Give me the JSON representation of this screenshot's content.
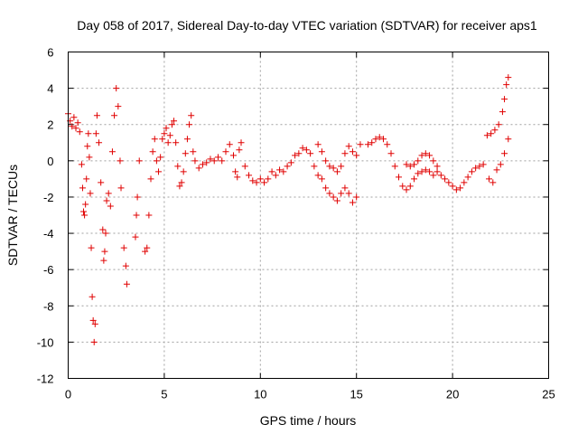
{
  "chart_data": {
    "type": "scatter",
    "title": "Day 058 of 2017, Sidereal Day-to-day VTEC variation (SDTVAR) for receiver aps1",
    "xlabel": "GPS time / hours",
    "ylabel": "SDTVAR / TECUs",
    "xlim": [
      0,
      25
    ],
    "ylim": [
      -12,
      6
    ],
    "xticks": [
      0,
      5,
      10,
      15,
      20,
      25
    ],
    "yticks": [
      -12,
      -10,
      -8,
      -6,
      -4,
      -2,
      0,
      2,
      4,
      6
    ],
    "grid": true,
    "marker": "plus",
    "marker_color": "#e00000",
    "series": [
      {
        "name": "aps1",
        "points": [
          [
            0.0,
            2.6
          ],
          [
            0.1,
            2.2
          ],
          [
            0.2,
            1.9
          ],
          [
            0.3,
            2.4
          ],
          [
            0.4,
            1.8
          ],
          [
            0.5,
            2.1
          ],
          [
            0.6,
            1.6
          ],
          [
            0.7,
            -0.2
          ],
          [
            0.75,
            -1.5
          ],
          [
            0.8,
            -2.8
          ],
          [
            0.85,
            -3.0
          ],
          [
            0.9,
            -2.4
          ],
          [
            0.95,
            -1.0
          ],
          [
            1.0,
            0.8
          ],
          [
            1.05,
            1.5
          ],
          [
            1.1,
            0.2
          ],
          [
            1.15,
            -1.8
          ],
          [
            1.2,
            -4.8
          ],
          [
            1.25,
            -7.5
          ],
          [
            1.3,
            -8.8
          ],
          [
            1.35,
            -10.0
          ],
          [
            1.4,
            -9.0
          ],
          [
            1.45,
            1.5
          ],
          [
            1.5,
            2.5
          ],
          [
            1.6,
            1.0
          ],
          [
            1.7,
            -1.2
          ],
          [
            1.8,
            -3.8
          ],
          [
            1.85,
            -5.5
          ],
          [
            1.9,
            -5.0
          ],
          [
            1.95,
            -4.0
          ],
          [
            2.0,
            -2.2
          ],
          [
            2.1,
            -1.8
          ],
          [
            2.2,
            -2.5
          ],
          [
            2.3,
            0.5
          ],
          [
            2.4,
            2.5
          ],
          [
            2.5,
            4.0
          ],
          [
            2.6,
            3.0
          ],
          [
            2.7,
            0.0
          ],
          [
            2.75,
            -1.5
          ],
          [
            2.9,
            -4.8
          ],
          [
            3.0,
            -5.8
          ],
          [
            3.05,
            -6.8
          ],
          [
            3.5,
            -4.2
          ],
          [
            3.55,
            -3.0
          ],
          [
            3.6,
            -2.0
          ],
          [
            3.7,
            0.0
          ],
          [
            4.0,
            -5.0
          ],
          [
            4.1,
            -4.8
          ],
          [
            4.2,
            -3.0
          ],
          [
            4.3,
            -1.0
          ],
          [
            4.4,
            0.5
          ],
          [
            4.5,
            1.2
          ],
          [
            4.6,
            0.0
          ],
          [
            4.7,
            -0.6
          ],
          [
            4.8,
            0.2
          ],
          [
            4.9,
            1.2
          ],
          [
            5.0,
            1.5
          ],
          [
            5.1,
            1.8
          ],
          [
            5.2,
            1.0
          ],
          [
            5.3,
            1.4
          ],
          [
            5.4,
            2.0
          ],
          [
            5.5,
            2.2
          ],
          [
            5.6,
            1.0
          ],
          [
            5.7,
            -0.3
          ],
          [
            5.8,
            -1.4
          ],
          [
            5.9,
            -1.2
          ],
          [
            6.0,
            -0.6
          ],
          [
            6.1,
            0.4
          ],
          [
            6.2,
            1.2
          ],
          [
            6.3,
            2.0
          ],
          [
            6.4,
            2.5
          ],
          [
            6.5,
            0.5
          ],
          [
            6.6,
            0.0
          ],
          [
            6.8,
            -0.4
          ],
          [
            7.0,
            -0.2
          ],
          [
            7.2,
            -0.1
          ],
          [
            7.4,
            0.1
          ],
          [
            7.6,
            0.0
          ],
          [
            7.8,
            0.2
          ],
          [
            8.0,
            0.0
          ],
          [
            8.2,
            0.5
          ],
          [
            8.4,
            0.9
          ],
          [
            8.6,
            0.3
          ],
          [
            8.7,
            -0.6
          ],
          [
            8.8,
            -0.9
          ],
          [
            8.9,
            0.6
          ],
          [
            9.0,
            1.0
          ],
          [
            9.2,
            -0.3
          ],
          [
            9.4,
            -0.8
          ],
          [
            9.6,
            -1.1
          ],
          [
            9.8,
            -1.2
          ],
          [
            10.0,
            -1.0
          ],
          [
            10.2,
            -1.2
          ],
          [
            10.4,
            -1.0
          ],
          [
            10.6,
            -0.6
          ],
          [
            10.8,
            -0.8
          ],
          [
            11.0,
            -0.5
          ],
          [
            11.2,
            -0.6
          ],
          [
            11.4,
            -0.3
          ],
          [
            11.6,
            -0.1
          ],
          [
            11.8,
            0.3
          ],
          [
            12.0,
            0.4
          ],
          [
            12.2,
            0.7
          ],
          [
            12.4,
            0.6
          ],
          [
            12.6,
            0.4
          ],
          [
            12.8,
            -0.3
          ],
          [
            13.0,
            -0.8
          ],
          [
            13.2,
            -1.0
          ],
          [
            13.4,
            -1.5
          ],
          [
            13.6,
            -1.8
          ],
          [
            13.8,
            -2.0
          ],
          [
            14.0,
            -2.2
          ],
          [
            14.2,
            -1.8
          ],
          [
            14.4,
            -1.5
          ],
          [
            14.6,
            -1.8
          ],
          [
            14.8,
            -2.3
          ],
          [
            15.0,
            -2.0
          ],
          [
            13.0,
            0.9
          ],
          [
            13.2,
            0.5
          ],
          [
            13.4,
            0.0
          ],
          [
            13.6,
            -0.3
          ],
          [
            13.8,
            -0.4
          ],
          [
            14.0,
            -0.6
          ],
          [
            14.2,
            -0.3
          ],
          [
            14.4,
            0.4
          ],
          [
            14.6,
            0.8
          ],
          [
            14.8,
            0.5
          ],
          [
            15.0,
            0.3
          ],
          [
            15.2,
            0.9
          ],
          [
            15.6,
            0.9
          ],
          [
            15.8,
            1.0
          ],
          [
            16.0,
            1.2
          ],
          [
            16.2,
            1.3
          ],
          [
            16.4,
            1.2
          ],
          [
            16.6,
            0.9
          ],
          [
            16.8,
            0.4
          ],
          [
            17.0,
            -0.3
          ],
          [
            17.2,
            -0.9
          ],
          [
            17.4,
            -1.4
          ],
          [
            17.6,
            -1.6
          ],
          [
            17.8,
            -1.4
          ],
          [
            18.0,
            -1.0
          ],
          [
            18.2,
            -0.7
          ],
          [
            18.4,
            -0.6
          ],
          [
            18.6,
            -0.5
          ],
          [
            18.8,
            -0.6
          ],
          [
            19.0,
            -0.8
          ],
          [
            19.2,
            -0.6
          ],
          [
            19.4,
            -0.8
          ],
          [
            19.6,
            -1.0
          ],
          [
            19.8,
            -1.2
          ],
          [
            20.0,
            -1.4
          ],
          [
            20.2,
            -1.6
          ],
          [
            20.4,
            -1.5
          ],
          [
            20.6,
            -1.2
          ],
          [
            20.8,
            -0.9
          ],
          [
            21.0,
            -0.6
          ],
          [
            21.2,
            -0.4
          ],
          [
            21.4,
            -0.3
          ],
          [
            17.6,
            -0.2
          ],
          [
            17.8,
            -0.3
          ],
          [
            18.0,
            -0.2
          ],
          [
            18.2,
            0.0
          ],
          [
            18.4,
            0.3
          ],
          [
            18.6,
            0.4
          ],
          [
            18.8,
            0.3
          ],
          [
            19.0,
            0.0
          ],
          [
            19.2,
            -0.3
          ],
          [
            21.6,
            -0.2
          ],
          [
            21.8,
            1.4
          ],
          [
            22.0,
            1.5
          ],
          [
            22.2,
            1.7
          ],
          [
            22.4,
            2.0
          ],
          [
            22.6,
            2.7
          ],
          [
            22.7,
            3.4
          ],
          [
            22.8,
            4.2
          ],
          [
            22.9,
            4.6
          ],
          [
            21.9,
            -1.0
          ],
          [
            22.1,
            -1.2
          ],
          [
            22.3,
            -0.5
          ],
          [
            22.5,
            -0.2
          ],
          [
            22.7,
            0.4
          ],
          [
            22.9,
            1.2
          ]
        ]
      }
    ]
  }
}
